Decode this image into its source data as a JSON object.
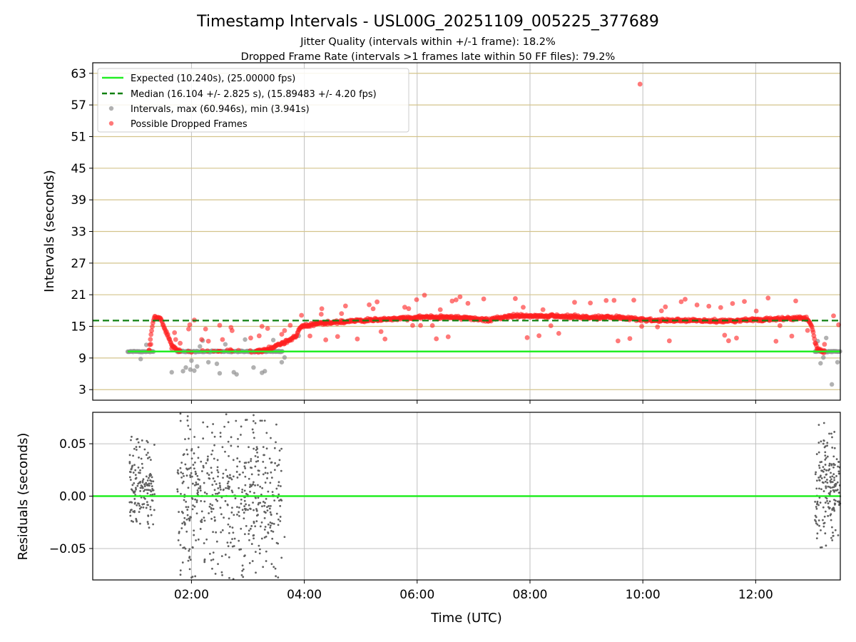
{
  "title": "Timestamp Intervals - USL00G_20251109_005225_377689",
  "subtitle1": "Jitter Quality (intervals within +/-1 frame): 18.2%",
  "subtitle2": "Dropped Frame Rate (intervals >1 frames late within 50 FF files): 79.2%",
  "colors": {
    "expected": "#22ee22",
    "median": "#108010",
    "intervals": "#909090",
    "dropped": "#ff2020",
    "residual": "#606060",
    "hgrid": "#d4c48c",
    "vgrid": "#c0c0c0"
  },
  "chart_data": [
    {
      "type": "scatter",
      "name": "intervals",
      "ylabel": "Intervals (seconds)",
      "xlim_hours": [
        0.25,
        13.5
      ],
      "ylim": [
        1,
        65
      ],
      "yticks": [
        3,
        9,
        15,
        21,
        27,
        33,
        39,
        45,
        51,
        57,
        63
      ],
      "yticklabels": [
        "3",
        "9",
        "15",
        "21",
        "27",
        "33",
        "39",
        "45",
        "51",
        "57",
        "63"
      ],
      "expected_value": 10.24,
      "median_value": 16.104,
      "max_interval": 60.946,
      "min_interval": 3.941,
      "outlier": {
        "x_hours": 9.95,
        "y": 60.946
      },
      "legend": [
        {
          "key": "expected",
          "label": "Expected (10.240s), (25.00000 fps)"
        },
        {
          "key": "median",
          "label": "Median (16.104 +/- 2.825 s), (15.89483 +/- 4.20 fps)"
        },
        {
          "key": "intervals",
          "label": "Intervals, max (60.946s), min (3.941s)"
        },
        {
          "key": "dropped",
          "label": "Possible Dropped Frames"
        }
      ],
      "legend_position": "upper-left",
      "dropped_trend": [
        [
          1.25,
          10.6
        ],
        [
          1.3,
          15
        ],
        [
          1.35,
          16.8
        ],
        [
          1.45,
          16.5
        ],
        [
          1.55,
          14
        ],
        [
          1.65,
          11.5
        ],
        [
          1.75,
          10.4
        ],
        [
          2.0,
          10.3
        ],
        [
          3.15,
          10.2
        ],
        [
          3.4,
          10.8
        ],
        [
          3.7,
          12.2
        ],
        [
          3.85,
          13.2
        ],
        [
          3.92,
          14.8
        ],
        [
          4.2,
          15.5
        ],
        [
          4.8,
          16
        ],
        [
          5.5,
          16.4
        ],
        [
          6.2,
          16.8
        ],
        [
          6.9,
          16.6
        ],
        [
          7.2,
          16.2
        ],
        [
          7.7,
          17
        ],
        [
          8.5,
          16.9
        ],
        [
          9.2,
          16.7
        ],
        [
          9.7,
          16.6
        ],
        [
          10.0,
          16.2
        ],
        [
          10.8,
          16.1
        ],
        [
          11.5,
          16
        ],
        [
          12.2,
          16.3
        ],
        [
          12.9,
          16.6
        ],
        [
          13.0,
          15
        ],
        [
          13.05,
          12
        ],
        [
          13.1,
          10.6
        ],
        [
          13.2,
          10.2
        ]
      ]
    },
    {
      "type": "scatter",
      "name": "residuals",
      "xlabel": "Time (UTC)",
      "ylabel": "Residuals (seconds)",
      "xlim_hours": [
        0.25,
        13.5
      ],
      "ylim": [
        -0.08,
        0.08
      ],
      "yticks": [
        -0.05,
        0.0,
        0.05
      ],
      "yticklabels": [
        "−0.05",
        "0.00",
        "0.05"
      ],
      "xticks_hours": [
        2,
        4,
        6,
        8,
        10,
        12
      ],
      "xticklabels": [
        "02:00",
        "04:00",
        "06:00",
        "08:00",
        "10:00",
        "12:00"
      ],
      "clusters": [
        {
          "x_range": [
            0.9,
            1.35
          ],
          "y_range": [
            -0.038,
            0.058
          ],
          "count": 160
        },
        {
          "x_range": [
            1.75,
            3.6
          ],
          "y_range": [
            -0.08,
            0.08
          ],
          "count": 520
        },
        {
          "x_range": [
            13.05,
            13.5
          ],
          "y_range": [
            -0.05,
            0.07
          ],
          "count": 180
        }
      ]
    }
  ]
}
